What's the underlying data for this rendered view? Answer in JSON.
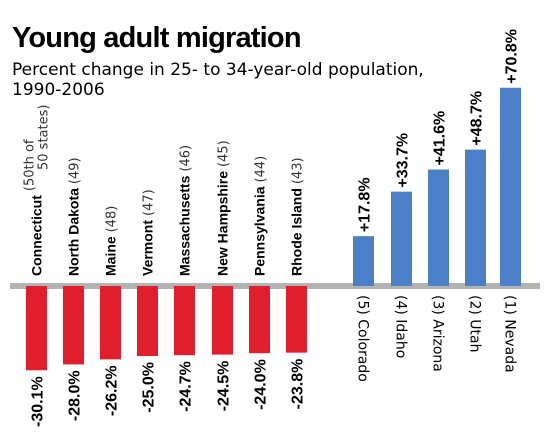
{
  "chart_data": {
    "type": "bar",
    "title": "Young adult migration",
    "subtitle_lines": [
      "Percent change in 25- to 34-year-old population,",
      "1990-2006"
    ],
    "losses": [
      {
        "name": "Connecticut",
        "rank_lines": [
          "(50th of",
          "50 states)"
        ],
        "value": -30.1,
        "label": "-30.1%"
      },
      {
        "name": "North Dakota",
        "rank_lines": [
          "(49)"
        ],
        "value": -28.0,
        "label": "-28.0%"
      },
      {
        "name": "Maine",
        "rank_lines": [
          "(48)"
        ],
        "value": -26.2,
        "label": "-26.2%"
      },
      {
        "name": "Vermont",
        "rank_lines": [
          "(47)"
        ],
        "value": -25.0,
        "label": "-25.0%"
      },
      {
        "name": "Massachusetts",
        "rank_lines": [
          "(46)"
        ],
        "value": -24.7,
        "label": "-24.7%"
      },
      {
        "name": "New Hampshire",
        "rank_lines": [
          "(45)"
        ],
        "value": -24.5,
        "label": "-24.5%"
      },
      {
        "name": "Pennsylvania",
        "rank_lines": [
          "(44)"
        ],
        "value": -24.0,
        "label": "-24.0%"
      },
      {
        "name": "Rhode Island",
        "rank_lines": [
          "(43)"
        ],
        "value": -23.8,
        "label": "-23.8%"
      }
    ],
    "gains": [
      {
        "label_text": "(5) Colorado",
        "value": 17.8,
        "label": "+17.8%"
      },
      {
        "label_text": "(4) Idaho",
        "value": 33.7,
        "label": "+33.7%"
      },
      {
        "label_text": "(3) Arizona",
        "value": 41.6,
        "label": "+41.6%"
      },
      {
        "label_text": "(2) Utah",
        "value": 48.7,
        "label": "+48.7%"
      },
      {
        "label_text": "(1) Nevada",
        "value": 70.8,
        "label": "+70.8%"
      }
    ],
    "colors": {
      "loss": "#e01f2d",
      "gain": "#4b80c8",
      "baseline": "#b3b3b3"
    },
    "grid": false,
    "legend": "none"
  }
}
